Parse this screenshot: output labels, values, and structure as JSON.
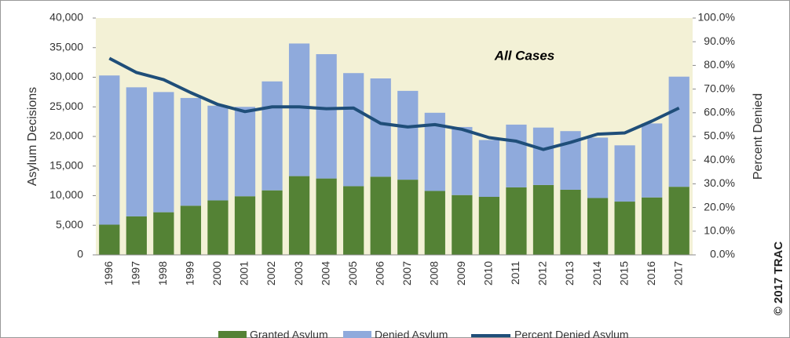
{
  "chart_data": {
    "type": "bar",
    "stacked": true,
    "annotation": "All Cases",
    "credit": "© 2017 TRAC",
    "y_label": "Asylum Decisions",
    "y2_label": "Percent Denied",
    "categories": [
      "1996",
      "1997",
      "1998",
      "1999",
      "2000",
      "2001",
      "2002",
      "2003",
      "2004",
      "2005",
      "2006",
      "2007",
      "2008",
      "2009",
      "2010",
      "2011",
      "2012",
      "2013",
      "2014",
      "2015",
      "2016",
      "2017"
    ],
    "series": [
      {
        "name": "Granted Asylum",
        "type": "bar",
        "color": "#548235",
        "values": [
          5100,
          6500,
          7200,
          8300,
          9200,
          9900,
          10900,
          13300,
          12900,
          11600,
          13200,
          12700,
          10800,
          10100,
          9800,
          11400,
          11800,
          11000,
          9600,
          9000,
          9700,
          11500
        ]
      },
      {
        "name": "Denied Asylum",
        "type": "bar",
        "color": "#8faadc",
        "values": [
          25200,
          21800,
          20300,
          18200,
          16000,
          15100,
          18400,
          22400,
          21000,
          19100,
          16600,
          15000,
          13200,
          11500,
          9600,
          10600,
          9700,
          9900,
          10200,
          9500,
          12500,
          18600
        ]
      },
      {
        "name": "Percent Denied Asylum",
        "type": "line",
        "axis": "y2",
        "color": "#1f4e79",
        "values": [
          83,
          77,
          74,
          68.5,
          63.5,
          60.5,
          62.5,
          62.5,
          61.7,
          62,
          55.5,
          54,
          55,
          53,
          49.5,
          48,
          44.5,
          47.5,
          51,
          51.5,
          56.5,
          62
        ]
      }
    ],
    "ylim": [
      0,
      40000
    ],
    "yticks": [
      0,
      {
        "value": 5000,
        "label": "5,000"
      },
      {
        "value": 10000,
        "label": "10,000"
      },
      {
        "value": 15000,
        "label": "15,000"
      },
      {
        "value": 20000,
        "label": "20,000"
      },
      {
        "value": 25000,
        "label": "25,000"
      },
      {
        "value": 30000,
        "label": "30,000"
      },
      {
        "value": 35000,
        "label": "35,000"
      },
      {
        "value": 40000,
        "label": "40,000"
      }
    ],
    "y2lim": [
      0,
      100
    ],
    "y2ticks": [
      {
        "value": 0,
        "label": "0.0%"
      },
      {
        "value": 10,
        "label": "10.0%"
      },
      {
        "value": 20,
        "label": "20.0%"
      },
      {
        "value": 30,
        "label": "30.0%"
      },
      {
        "value": 40,
        "label": "40.0%"
      },
      {
        "value": 50,
        "label": "50.0%"
      },
      {
        "value": 60,
        "label": "60.0%"
      },
      {
        "value": 70,
        "label": "70.0%"
      },
      {
        "value": 80,
        "label": "80.0%"
      },
      {
        "value": 90,
        "label": "90.0%"
      },
      {
        "value": 100,
        "label": "100.0%"
      }
    ],
    "plot_background": "#f3f1d6"
  }
}
